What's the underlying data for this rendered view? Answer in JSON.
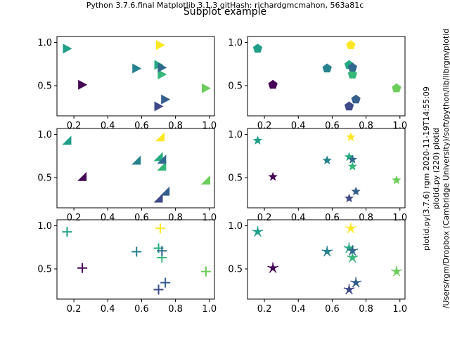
{
  "header": "Python 3.7.6.final  Matplotlib 3.1.3  gitHash: richardgmcmahon, 563a81c",
  "suptitle": "Subplot example",
  "side_text": [
    "plotid.py (220) plotid",
    "/Users/rgm/Dropbox (Cambridge University)/soft/python/lib/librgm/plotid",
    "plotid.py(3.7.6) rgm 2020-11-19T14:55:09"
  ],
  "colors": {
    "viridis_points": [
      "#fde725",
      "#1f9e89",
      "#6ccd5a",
      "#440154",
      "#26828e",
      "#25ab82",
      "#35b779",
      "#355f8d",
      "#3e4a89",
      "#31688e"
    ]
  },
  "chart_data": [
    {
      "type": "scatter",
      "marker": "triangle-right",
      "xlim": [
        0.1,
        1.03
      ],
      "ylim": [
        0.15,
        1.07
      ],
      "xticks": [
        "0.2",
        "0.4",
        "0.6",
        "0.8",
        "1.0"
      ],
      "yticks": [
        "0.5",
        "1.0"
      ],
      "x": [
        0.71,
        0.16,
        0.98,
        0.25,
        0.57,
        0.7,
        0.72,
        0.74,
        0.7,
        0.72
      ],
      "y": [
        0.97,
        0.93,
        0.47,
        0.51,
        0.7,
        0.74,
        0.63,
        0.34,
        0.26,
        0.71
      ]
    },
    {
      "type": "scatter",
      "marker": "pentagon",
      "xlim": [
        0.1,
        1.03
      ],
      "ylim": [
        0.15,
        1.07
      ],
      "xticks": [
        "0.2",
        "0.4",
        "0.6",
        "0.8",
        "1.0"
      ],
      "yticks": [
        "0.5",
        "1.0"
      ],
      "x": [
        0.71,
        0.16,
        0.98,
        0.25,
        0.57,
        0.7,
        0.72,
        0.74,
        0.7,
        0.72
      ],
      "y": [
        0.97,
        0.93,
        0.47,
        0.51,
        0.7,
        0.74,
        0.63,
        0.34,
        0.26,
        0.71
      ]
    },
    {
      "type": "scatter",
      "marker": "triangle-corner",
      "xlim": [
        0.1,
        1.03
      ],
      "ylim": [
        0.15,
        1.07
      ],
      "xticks": [
        "0.2",
        "0.4",
        "0.6",
        "0.8",
        "1.0"
      ],
      "yticks": [
        "0.5",
        "1.0"
      ],
      "x": [
        0.71,
        0.16,
        0.98,
        0.25,
        0.57,
        0.7,
        0.72,
        0.74,
        0.7,
        0.72
      ],
      "y": [
        0.97,
        0.93,
        0.47,
        0.51,
        0.7,
        0.74,
        0.63,
        0.34,
        0.26,
        0.71
      ]
    },
    {
      "type": "scatter",
      "marker": "star",
      "xlim": [
        0.1,
        1.03
      ],
      "ylim": [
        0.15,
        1.07
      ],
      "xticks": [
        "0.2",
        "0.4",
        "0.6",
        "0.8",
        "1.0"
      ],
      "yticks": [
        "0.5",
        "1.0"
      ],
      "x": [
        0.71,
        0.16,
        0.98,
        0.25,
        0.57,
        0.7,
        0.72,
        0.74,
        0.7,
        0.72
      ],
      "y": [
        0.97,
        0.93,
        0.47,
        0.51,
        0.7,
        0.74,
        0.63,
        0.34,
        0.26,
        0.71
      ]
    },
    {
      "type": "scatter",
      "marker": "plus",
      "xlim": [
        0.1,
        1.03
      ],
      "ylim": [
        0.15,
        1.07
      ],
      "xticks": [
        "0.2",
        "0.4",
        "0.6",
        "0.8",
        "1.0"
      ],
      "yticks": [
        "0.5",
        "1.0"
      ],
      "x": [
        0.71,
        0.16,
        0.98,
        0.25,
        0.57,
        0.7,
        0.72,
        0.74,
        0.7,
        0.72
      ],
      "y": [
        0.97,
        0.93,
        0.47,
        0.51,
        0.7,
        0.74,
        0.63,
        0.34,
        0.26,
        0.71
      ]
    },
    {
      "type": "scatter",
      "marker": "asterisk",
      "xlim": [
        0.1,
        1.03
      ],
      "ylim": [
        0.15,
        1.07
      ],
      "xticks": [
        "0.2",
        "0.4",
        "0.6",
        "0.8",
        "1.0"
      ],
      "yticks": [
        "0.5",
        "1.0"
      ],
      "x": [
        0.71,
        0.16,
        0.98,
        0.25,
        0.57,
        0.7,
        0.72,
        0.74,
        0.7,
        0.72
      ],
      "y": [
        0.97,
        0.93,
        0.47,
        0.51,
        0.7,
        0.74,
        0.63,
        0.34,
        0.26,
        0.71
      ]
    }
  ]
}
